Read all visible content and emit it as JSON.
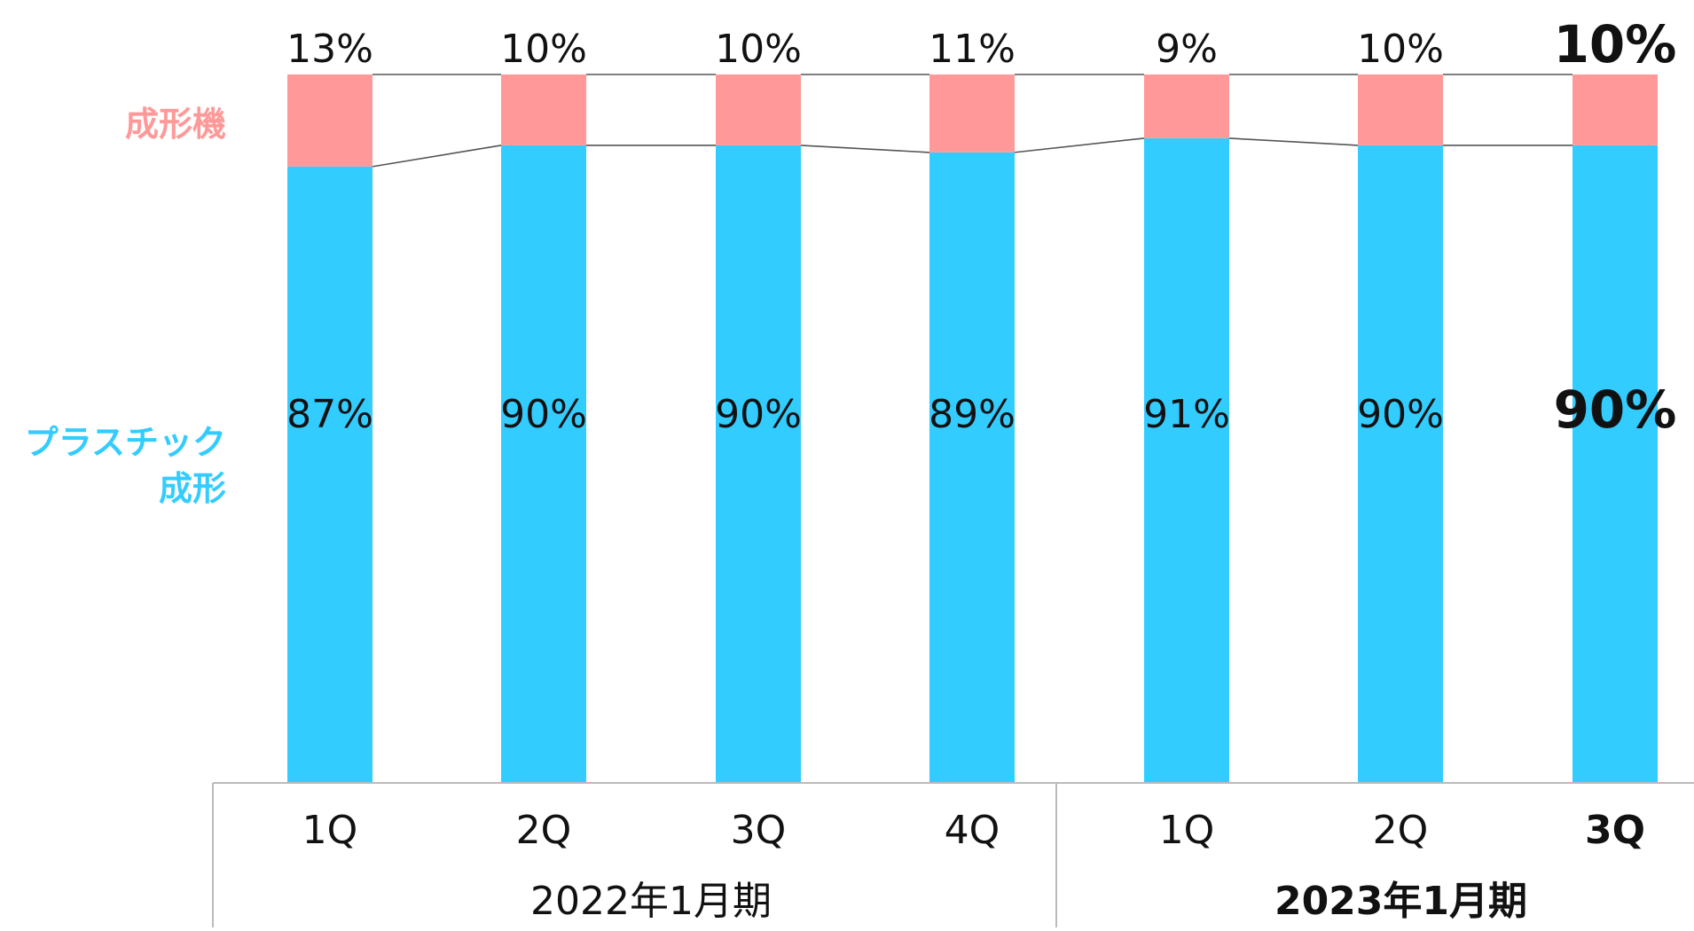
{
  "chart_data": {
    "type": "bar",
    "stacked": true,
    "normalized_percent": true,
    "categories": [
      "1Q",
      "2Q",
      "3Q",
      "4Q",
      "1Q",
      "2Q",
      "3Q"
    ],
    "groups": [
      {
        "label": "2022年1月期",
        "span": 4,
        "emphasis": false
      },
      {
        "label": "2023年1月期",
        "span": 3,
        "emphasis": true
      }
    ],
    "emphasis": [
      false,
      false,
      false,
      false,
      false,
      false,
      true
    ],
    "series": [
      {
        "name": "プラスチック成形",
        "legend_lines": [
          "プラスチック",
          "成形"
        ],
        "color": "#33CCFF",
        "values": [
          87,
          90,
          90,
          89,
          91,
          90,
          90
        ],
        "labels": [
          "87%",
          "90%",
          "90%",
          "89%",
          "91%",
          "90%",
          "90%"
        ]
      },
      {
        "name": "成形機",
        "legend_lines": [
          "成形機"
        ],
        "color": "#FF9999",
        "values": [
          13,
          10,
          10,
          11,
          9,
          10,
          10
        ],
        "labels": [
          "13%",
          "10%",
          "10%",
          "11%",
          "9%",
          "10%",
          "10%"
        ]
      }
    ],
    "ylim": [
      0,
      100
    ],
    "grid": false,
    "connector_lines": true,
    "legend_position": "left",
    "title": "",
    "xlabel": "",
    "ylabel": ""
  }
}
